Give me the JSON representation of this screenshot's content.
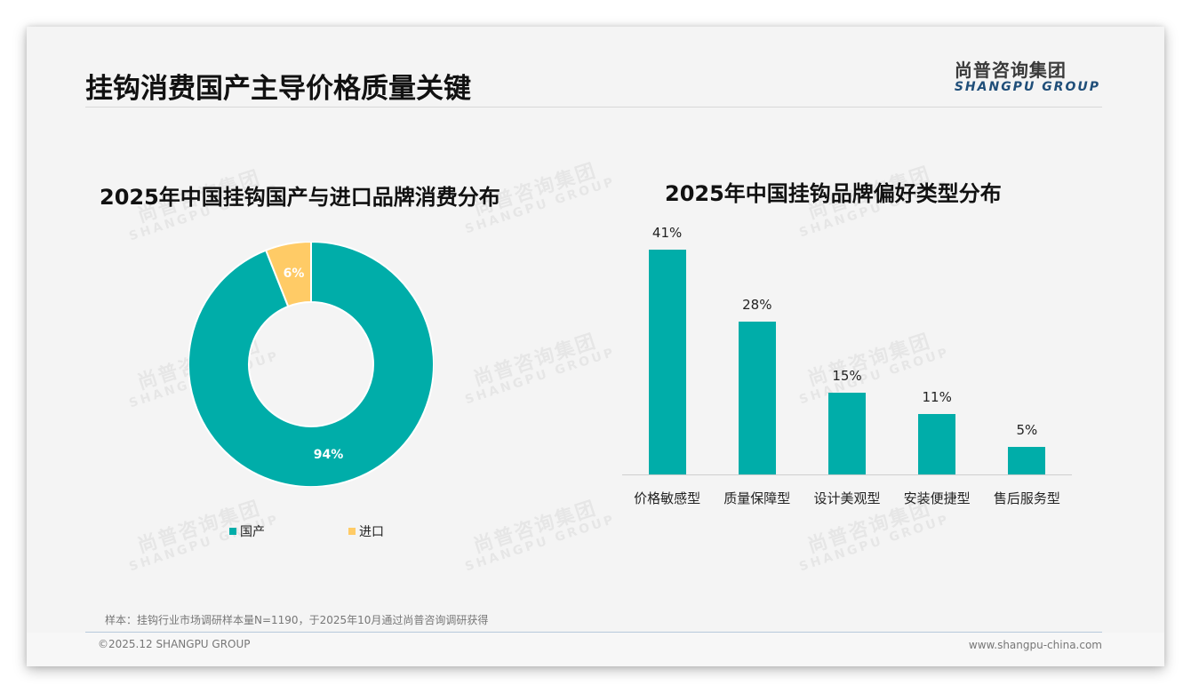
{
  "header": {
    "title": "挂钩消费国产主导价格质量关键",
    "logo_cn": "尚普咨询集团",
    "logo_en": "SHANGPU GROUP"
  },
  "watermark": {
    "cn": "尚普咨询集团",
    "en": "SHANGPU GROUP"
  },
  "colors": {
    "teal": "#00ada9",
    "yellow": "#ffcb66",
    "title_blue": "#1f4e79"
  },
  "chart_data": [
    {
      "type": "pie",
      "variant": "donut",
      "title": "2025年中国挂钩国产与进口品牌消费分布",
      "categories": [
        "国产",
        "进口"
      ],
      "values": [
        94,
        6
      ],
      "labels": [
        "94%",
        "6%"
      ],
      "colors": [
        "#00ada9",
        "#ffcb66"
      ],
      "legend_position": "bottom",
      "legend": [
        {
          "label": "国产",
          "color": "#00ada9"
        },
        {
          "label": "进口",
          "color": "#ffcb66"
        }
      ]
    },
    {
      "type": "bar",
      "title": "2025年中国挂钩品牌偏好类型分布",
      "categories": [
        "价格敏感型",
        "质量保障型",
        "设计美观型",
        "安装便捷型",
        "售后服务型"
      ],
      "values": [
        41,
        28,
        15,
        11,
        5
      ],
      "labels": [
        "41%",
        "28%",
        "15%",
        "11%",
        "5%"
      ],
      "unit": "%",
      "xlabel": "",
      "ylabel": "",
      "ylim": [
        0,
        41
      ],
      "grid": false,
      "color": "#00ada9"
    }
  ],
  "footer": {
    "note": "样本：挂钩行业市场调研样本量N=1190，于2025年10月通过尚普咨询调研获得",
    "copyright": "©2025.12 SHANGPU GROUP",
    "website": "www.shangpu-china.com"
  }
}
